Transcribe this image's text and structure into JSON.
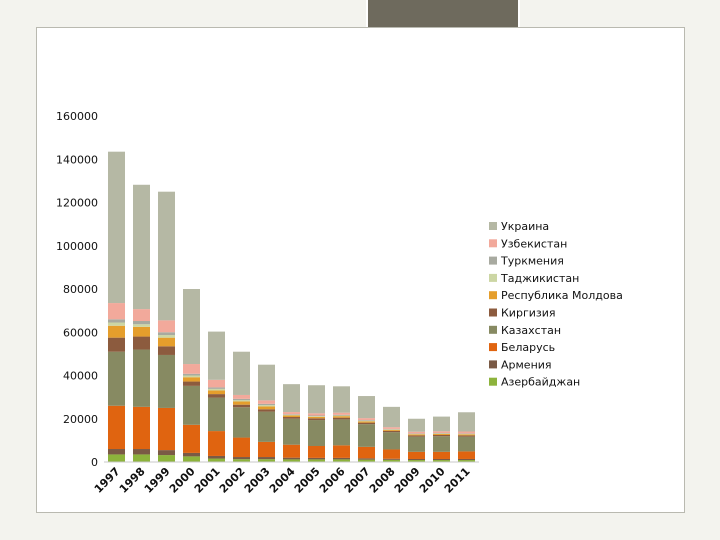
{
  "slide": {
    "background": "#f3f3ee",
    "accent": "#6e6a5d"
  },
  "chart_data": {
    "type": "bar",
    "stacked": true,
    "title": "",
    "xlabel": "",
    "ylabel": "",
    "ylim": [
      0,
      160000
    ],
    "yticks": [
      0,
      20000,
      40000,
      60000,
      80000,
      100000,
      120000,
      140000,
      160000
    ],
    "grid": false,
    "legend_position": "right",
    "categories": [
      "1997",
      "1998",
      "1999",
      "2000",
      "2001",
      "2002",
      "2003",
      "2004",
      "2005",
      "2006",
      "2007",
      "2008",
      "2009",
      "2010",
      "2011"
    ],
    "series": [
      {
        "name": "Азербайджан",
        "color": "#8db33c",
        "values": [
          3500,
          3500,
          3200,
          2600,
          1600,
          1300,
          1300,
          1200,
          1200,
          1200,
          1100,
          1000,
          900,
          900,
          900
        ]
      },
      {
        "name": "Армения",
        "color": "#7a5a45",
        "values": [
          2500,
          2500,
          2300,
          1600,
          1200,
          1000,
          1000,
          800,
          700,
          700,
          600,
          500,
          500,
          500,
          500
        ]
      },
      {
        "name": "Беларусь",
        "color": "#e06410",
        "values": [
          20000,
          19500,
          19500,
          13000,
          11500,
          9000,
          7000,
          6000,
          5500,
          5800,
          5300,
          4300,
          3300,
          3300,
          3500
        ]
      },
      {
        "name": "Казахстан",
        "color": "#878a62",
        "values": [
          25000,
          26500,
          24500,
          18000,
          15500,
          14000,
          14000,
          12000,
          12000,
          12000,
          10500,
          8000,
          7000,
          7200,
          6800
        ]
      },
      {
        "name": "Киргизия",
        "color": "#8c5b3e",
        "values": [
          6500,
          6000,
          4000,
          2000,
          1600,
          1200,
          1100,
          800,
          800,
          800,
          700,
          600,
          600,
          600,
          600
        ]
      },
      {
        "name": "Республика Молдова",
        "color": "#e59e2c",
        "values": [
          5500,
          4500,
          4000,
          2000,
          1700,
          1500,
          1300,
          700,
          700,
          700,
          600,
          500,
          500,
          500,
          500
        ]
      },
      {
        "name": "Таджикистан",
        "color": "#ccd6a4",
        "values": [
          1500,
          1200,
          1200,
          800,
          700,
          600,
          600,
          300,
          300,
          300,
          300,
          200,
          200,
          200,
          200
        ]
      },
      {
        "name": "Туркмения",
        "color": "#a8aaa0",
        "values": [
          1500,
          1500,
          1300,
          800,
          700,
          600,
          600,
          300,
          300,
          300,
          300,
          200,
          200,
          200,
          200
        ]
      },
      {
        "name": "Узбекистан",
        "color": "#f2a99b",
        "values": [
          7500,
          5500,
          5500,
          4500,
          3500,
          1800,
          1600,
          1000,
          1000,
          1000,
          900,
          800,
          800,
          800,
          900
        ]
      },
      {
        "name": "Украина",
        "color": "#b5b8a4",
        "values": [
          70000,
          57500,
          59500,
          34700,
          22300,
          20000,
          16500,
          12900,
          13000,
          12200,
          10200,
          9400,
          6000,
          6800,
          8900
        ]
      }
    ]
  }
}
